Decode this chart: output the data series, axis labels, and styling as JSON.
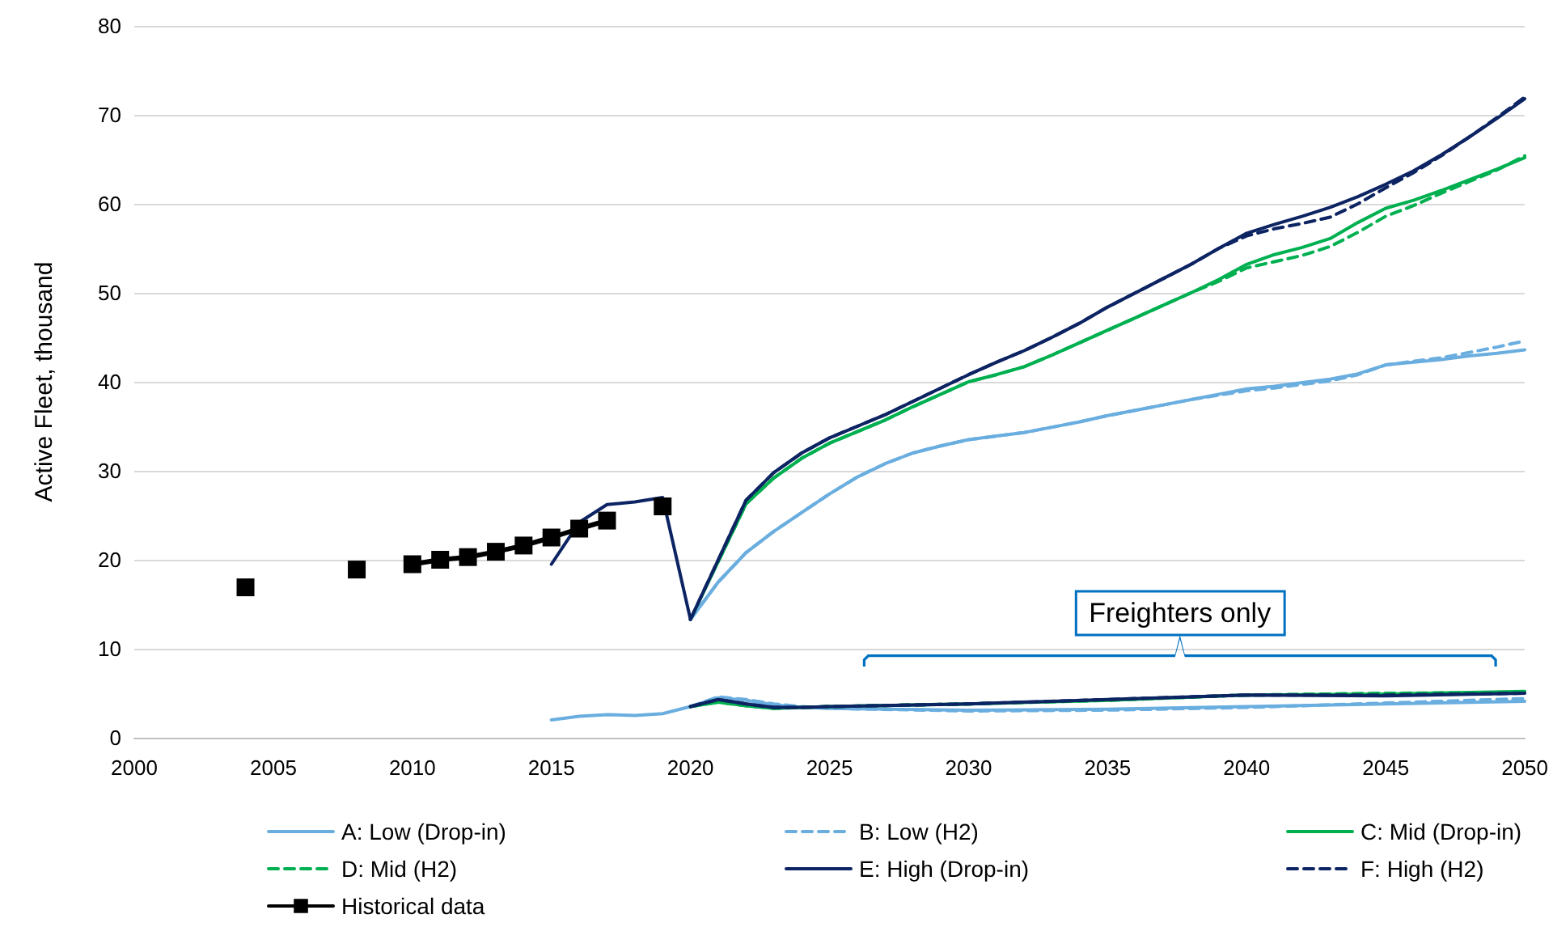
{
  "chart_data": {
    "type": "line",
    "ylabel": "Active Fleet, thousand",
    "xlim": [
      2000,
      2050
    ],
    "xticks": [
      2000,
      2005,
      2010,
      2015,
      2020,
      2025,
      2030,
      2035,
      2040,
      2045,
      2050
    ],
    "ylim": [
      0,
      80
    ],
    "yticks": [
      0,
      10,
      20,
      30,
      40,
      50,
      60,
      70,
      80
    ],
    "grid": "y",
    "legend": "bottom",
    "marker": "none",
    "annotations": [
      "Freighters only"
    ],
    "series": [
      {
        "name": "A: Low (Drop-in)",
        "color": "#6aaee0",
        "line_style": "solid",
        "x": [
          2020,
          2021,
          2022,
          2023,
          2024,
          2025,
          2026,
          2027,
          2028,
          2029,
          2030,
          2031,
          2032,
          2033,
          2034,
          2035,
          2036,
          2037,
          2038,
          2039,
          2040,
          2041,
          2042,
          2043,
          2044,
          2045,
          2046,
          2047,
          2048,
          2049,
          2050
        ],
        "values": [
          13.3,
          17.5,
          20.8,
          23.2,
          25.3,
          27.4,
          29.3,
          30.8,
          32,
          32.8,
          33.5,
          33.9,
          34.3,
          34.9,
          35.5,
          36.2,
          36.8,
          37.4,
          38,
          38.6,
          39.2,
          39.5,
          39.9,
          40.3,
          40.9,
          41.9,
          42.2,
          42.5,
          42.9,
          43.2,
          43.6
        ]
      },
      {
        "name": "B: Low (H2)",
        "color": "#6aaee0",
        "line_style": "dashed",
        "x": [
          2020,
          2021,
          2022,
          2023,
          2024,
          2025,
          2026,
          2027,
          2028,
          2029,
          2030,
          2031,
          2032,
          2033,
          2034,
          2035,
          2036,
          2037,
          2038,
          2039,
          2040,
          2041,
          2042,
          2043,
          2044,
          2045,
          2046,
          2047,
          2048,
          2049,
          2050
        ],
        "values": [
          13.3,
          17.5,
          20.8,
          23.2,
          25.3,
          27.4,
          29.3,
          30.8,
          32,
          32.8,
          33.5,
          33.9,
          34.3,
          34.9,
          35.5,
          36.2,
          36.8,
          37.4,
          38,
          38.5,
          39,
          39.3,
          39.7,
          40.1,
          40.8,
          41.9,
          42.3,
          42.7,
          43.3,
          43.9,
          44.6
        ]
      },
      {
        "name": "C: Mid (Drop-in)",
        "color": "#00b050",
        "line_style": "solid",
        "x": [
          2020,
          2021,
          2022,
          2023,
          2024,
          2025,
          2026,
          2027,
          2028,
          2029,
          2030,
          2031,
          2032,
          2033,
          2034,
          2035,
          2036,
          2037,
          2038,
          2039,
          2040,
          2041,
          2042,
          2043,
          2044,
          2045,
          2046,
          2047,
          2048,
          2049,
          2050
        ],
        "values": [
          13.3,
          19.8,
          26.3,
          29.2,
          31.4,
          33.1,
          34.4,
          35.7,
          37.2,
          38.6,
          40,
          40.8,
          41.7,
          43,
          44.4,
          45.8,
          47.2,
          48.6,
          50,
          51.5,
          53.2,
          54.3,
          55.1,
          56.1,
          57.9,
          59.5,
          60.4,
          61.5,
          62.7,
          63.9,
          65.2
        ]
      },
      {
        "name": "D: Mid (H2)",
        "color": "#00b050",
        "line_style": "dashed",
        "x": [
          2021,
          2022,
          2023,
          2024,
          2025,
          2026,
          2027,
          2028,
          2029,
          2030,
          2031,
          2032,
          2033,
          2034,
          2035,
          2036,
          2037,
          2038,
          2039,
          2040,
          2041,
          2042,
          2043,
          2044,
          2045,
          2046,
          2047,
          2048,
          2049,
          2050
        ],
        "values": [
          19.8,
          26.3,
          29.2,
          31.4,
          33.1,
          34.4,
          35.7,
          37.2,
          38.6,
          40,
          40.8,
          41.7,
          43,
          44.4,
          45.8,
          47.2,
          48.6,
          50,
          51.3,
          52.8,
          53.5,
          54.2,
          55.2,
          56.8,
          58.6,
          59.8,
          61.2,
          62.5,
          63.8,
          65.4
        ]
      },
      {
        "name": "E: High (Drop-in)",
        "color": "#0d2463",
        "line_style": "solid",
        "x": [
          2015,
          2016,
          2017,
          2018,
          2019,
          2020,
          2021,
          2022,
          2023,
          2024,
          2025,
          2026,
          2027,
          2028,
          2029,
          2030,
          2031,
          2032,
          2033,
          2034,
          2035,
          2036,
          2037,
          2038,
          2039,
          2040,
          2041,
          2042,
          2043,
          2044,
          2045,
          2046,
          2047,
          2048,
          2049,
          2050
        ],
        "values": [
          19.5,
          24.2,
          26.2,
          26.5,
          27,
          13.3,
          20,
          26.7,
          29.8,
          32,
          33.7,
          35,
          36.3,
          37.8,
          39.3,
          40.8,
          42.2,
          43.5,
          45,
          46.6,
          48.4,
          50,
          51.6,
          53.2,
          55,
          56.7,
          57.7,
          58.6,
          59.6,
          60.8,
          62.2,
          63.7,
          65.5,
          67.5,
          69.6,
          71.8
        ]
      },
      {
        "name": "F: High (H2)",
        "color": "#0d2463",
        "line_style": "dashed",
        "x": [
          2020,
          2021,
          2022,
          2023,
          2024,
          2025,
          2026,
          2027,
          2028,
          2029,
          2030,
          2031,
          2032,
          2033,
          2034,
          2035,
          2036,
          2037,
          2038,
          2039,
          2040,
          2041,
          2042,
          2043,
          2044,
          2045,
          2046,
          2047,
          2048,
          2049,
          2050
        ],
        "values": [
          13.3,
          20,
          26.7,
          29.8,
          32,
          33.7,
          35,
          36.3,
          37.8,
          39.3,
          40.8,
          42.2,
          43.5,
          45,
          46.6,
          48.4,
          50,
          51.6,
          53.2,
          55,
          56.4,
          57.2,
          57.8,
          58.5,
          60,
          61.8,
          63.5,
          65.4,
          67.5,
          69.7,
          72
        ]
      },
      {
        "color": "#6aaee0",
        "line_style": "solid",
        "x": [
          2015,
          2016,
          2017,
          2018,
          2019,
          2020,
          2021,
          2022,
          2023,
          2024,
          2025,
          2030,
          2035,
          2040,
          2045,
          2050
        ],
        "values": [
          2,
          2.4,
          2.6,
          2.5,
          2.7,
          3.5,
          4.5,
          4.2,
          3.7,
          3.4,
          3.3,
          3.1,
          3.2,
          3.5,
          3.8,
          4.1
        ]
      },
      {
        "color": "#6aaee0",
        "line_style": "dashed",
        "x": [
          2020,
          2021,
          2022,
          2023,
          2024,
          2025,
          2030,
          2035,
          2040,
          2045,
          2050
        ],
        "values": [
          3.5,
          4.6,
          4.3,
          3.8,
          3.5,
          3.3,
          3,
          3.1,
          3.4,
          3.9,
          4.4
        ]
      },
      {
        "color": "#00b050",
        "line_style": "solid",
        "x": [
          2020,
          2021,
          2022,
          2023,
          2024,
          2025,
          2030,
          2035,
          2040,
          2045,
          2050
        ],
        "values": [
          3.5,
          4,
          3.6,
          3.3,
          3.4,
          3.5,
          3.8,
          4.2,
          4.8,
          4.9,
          5.2
        ]
      },
      {
        "color": "#00b050",
        "line_style": "dashed",
        "x": [
          2020,
          2021,
          2022,
          2023,
          2024,
          2025,
          2030,
          2035,
          2040,
          2045,
          2050
        ],
        "values": [
          3.5,
          4,
          3.6,
          3.3,
          3.4,
          3.5,
          3.8,
          4.2,
          4.8,
          5,
          5.1
        ]
      },
      {
        "color": "#0d2463",
        "line_style": "solid",
        "x": [
          2020,
          2021,
          2022,
          2023,
          2024,
          2025,
          2030,
          2035,
          2040,
          2045,
          2050
        ],
        "values": [
          3.5,
          4.3,
          3.8,
          3.4,
          3.4,
          3.5,
          3.8,
          4.3,
          4.8,
          4.7,
          5
        ]
      },
      {
        "color": "#0d2463",
        "line_style": "dashed",
        "x": [
          2020,
          2021,
          2022,
          2023,
          2024,
          2025,
          2030,
          2035,
          2040,
          2045,
          2050
        ],
        "values": [
          3.5,
          4.3,
          3.8,
          3.4,
          3.4,
          3.5,
          3.8,
          4.3,
          4.8,
          4.8,
          5
        ]
      },
      {
        "name": "Historical data",
        "color": "#000000",
        "line_style": "solid",
        "marker": "square",
        "x": [
          2004,
          2006,
          2008,
          2009,
          2010,
          2011,
          2012,
          2013,
          2014,
          2015,
          2016,
          2017,
          2018,
          2019
        ],
        "values": [
          16.9,
          null,
          18.9,
          null,
          19.5,
          20,
          20.3,
          20.9,
          21.6,
          22.5,
          23.5,
          24.4,
          null,
          26
        ]
      }
    ]
  }
}
